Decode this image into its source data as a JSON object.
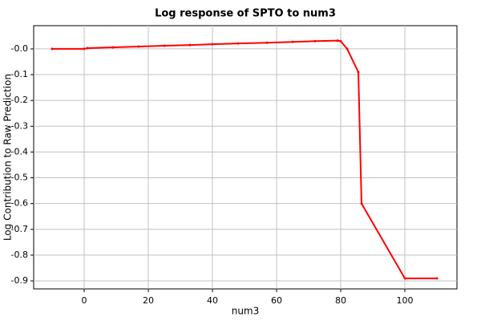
{
  "chart_data": {
    "type": "line",
    "title": "Log response of SPTO to num3",
    "x_label": "num3",
    "y_label": "Log Contribution to Raw Prediction",
    "x": [
      -10,
      0,
      1,
      9,
      17,
      25,
      33,
      40,
      48,
      57,
      65,
      72,
      79,
      80,
      82,
      85.5,
      86.5,
      100,
      110
    ],
    "series": [
      {
        "name": "num3",
        "color": "#ff0000",
        "values": [
          0.0,
          0.0,
          0.003,
          0.006,
          0.009,
          0.012,
          0.015,
          0.018,
          0.021,
          0.024,
          0.027,
          0.03,
          0.032,
          0.03,
          0.0,
          -0.09,
          -0.6,
          -0.89,
          -0.89
        ]
      }
    ],
    "xlim": [
      -15.75,
      116.25
    ],
    "xticks": [
      0,
      20,
      40,
      60,
      80,
      100
    ],
    "ylim": [
      -0.931,
      0.09
    ],
    "yticks": [
      {
        "value": 0,
        "label": "-0.0"
      },
      -0.1,
      -0.2,
      -0.3,
      -0.4,
      -0.5,
      -0.6,
      -0.7,
      -0.8,
      -0.9
    ],
    "grid": true
  }
}
